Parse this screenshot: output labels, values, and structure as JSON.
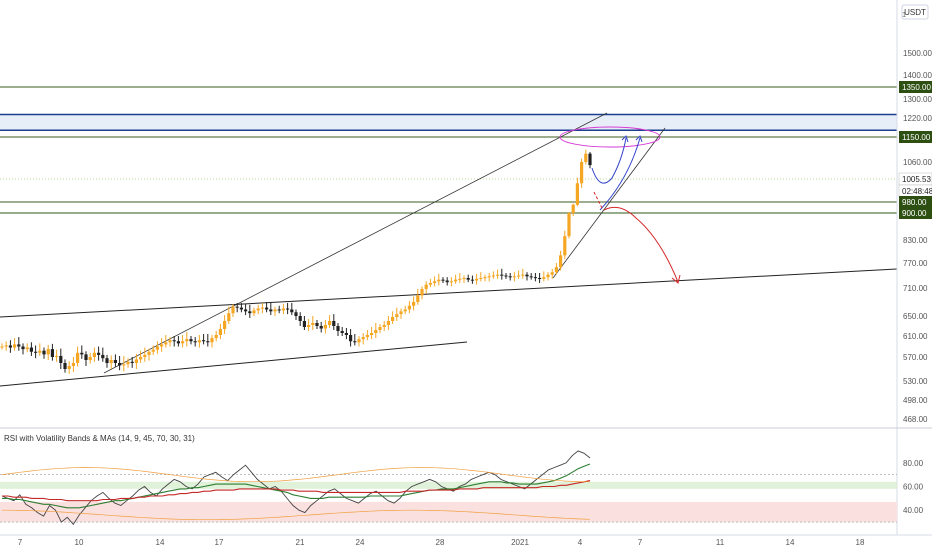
{
  "app": {
    "currency": "USDT",
    "scale_marker": "1"
  },
  "chart_data": [
    {
      "type": "candlestick",
      "title": "",
      "y_axis": {
        "ticks": [
          1500,
          1400,
          1300,
          1220,
          1060,
          830,
          770,
          710,
          650,
          610,
          570,
          530,
          498,
          468
        ],
        "tick_labels": [
          "1500.00",
          "1400.00",
          "1300.00",
          "1220.00",
          "1060.00",
          "830.00",
          "770.00",
          "710.00",
          "650.00",
          "610.00",
          "570.00",
          "530.00",
          "498.00",
          "468.00"
        ]
      },
      "x_axis": {
        "tick_labels": [
          "7",
          "10",
          "14",
          "17",
          "21",
          "24",
          "28",
          "2021",
          "4",
          "7",
          "11",
          "14",
          "18"
        ]
      },
      "price_badges": [
        {
          "label": "1350.00",
          "value": 1350,
          "style": "green"
        },
        {
          "label": "1150.00",
          "value": 1150,
          "style": "green"
        },
        {
          "label": "1005.53",
          "value": 1005.53,
          "style": "light"
        },
        {
          "label": "02:48:48",
          "value": 990,
          "style": "light"
        },
        {
          "label": "980.00",
          "value": 980,
          "style": "green"
        },
        {
          "label": "900.00",
          "value": 900,
          "style": "green"
        }
      ],
      "horizontal_levels": [
        {
          "value": 1350,
          "color": "#3a5c1c"
        },
        {
          "value": 1150,
          "color": "#3a5c1c"
        },
        {
          "value": 980,
          "color": "#3a5c1c"
        },
        {
          "value": 900,
          "color": "#2f5a17"
        },
        {
          "value": 1005.53,
          "color": "#b9dba0",
          "style": "dotted"
        }
      ],
      "zone": {
        "from": 1175,
        "to": 1235,
        "fill": "#e8eef8",
        "border": "#1a3f8f"
      },
      "candles_close": [
        590,
        592,
        588,
        594,
        590,
        585,
        588,
        580,
        578,
        582,
        575,
        585,
        570,
        572,
        560,
        550,
        555,
        560,
        578,
        575,
        565,
        570,
        578,
        574,
        568,
        560,
        565,
        560,
        556,
        558,
        562,
        560,
        566,
        570,
        574,
        580,
        584,
        590,
        594,
        598,
        602,
        600,
        596,
        600,
        604,
        600,
        598,
        602,
        600,
        598,
        606,
        612,
        624,
        640,
        656,
        670,
        668,
        664,
        660,
        656,
        662,
        666,
        668,
        664,
        660,
        664,
        662,
        666,
        664,
        658,
        650,
        640,
        628,
        632,
        636,
        630,
        625,
        632,
        640,
        630,
        620,
        616,
        612,
        600,
        598,
        604,
        608,
        612,
        616,
        622,
        628,
        632,
        640,
        648,
        654,
        660,
        664,
        672,
        680,
        694,
        708,
        718,
        722,
        726,
        730,
        728,
        724,
        726,
        730,
        732,
        734,
        730,
        728,
        732,
        734,
        736,
        738,
        740,
        742,
        740,
        738,
        736,
        738,
        740,
        742,
        738,
        736,
        734,
        732,
        736,
        742,
        748,
        760,
        790,
        840,
        900,
        960,
        1000,
        1060,
        1090,
        1050
      ],
      "line_x_start": 0,
      "price_range": [
        468,
        1500
      ]
    },
    {
      "type": "line",
      "title": "RSI with Volatility Bands & MAs (14, 9, 45, 70, 30, 31)",
      "y_axis": {
        "ticks": [
          80,
          60,
          40
        ],
        "tick_labels": [
          "80.00",
          "60.00",
          "40.00"
        ]
      },
      "series": [
        {
          "color": "#444444",
          "values": [
            52,
            50,
            48,
            53,
            45,
            42,
            38,
            35,
            44,
            40,
            30,
            34,
            28,
            36,
            42,
            48,
            52,
            55,
            50,
            46,
            44,
            48,
            52,
            57,
            60,
            55,
            52,
            58,
            62,
            66,
            64,
            60,
            58,
            62,
            68,
            70,
            72,
            68,
            65,
            70,
            74,
            78,
            72,
            66,
            62,
            58,
            60,
            56,
            50,
            44,
            40,
            38,
            44,
            48,
            52,
            56,
            58,
            54,
            50,
            48,
            46,
            50,
            54,
            56,
            52,
            48,
            46,
            50,
            56,
            60,
            62,
            64,
            66,
            64,
            60,
            58,
            56,
            60,
            62,
            66,
            68,
            70,
            72,
            70,
            66,
            64,
            62,
            60,
            58,
            62,
            66,
            70,
            74,
            76,
            78,
            80,
            86,
            90,
            88,
            84
          ]
        },
        {
          "color": "#2e7d32",
          "values": [
            50,
            50,
            49,
            49,
            48,
            47,
            46,
            45,
            45,
            44,
            43,
            42,
            42,
            42,
            43,
            44,
            45,
            46,
            47,
            48,
            48,
            49,
            50,
            51,
            52,
            53,
            54,
            55,
            56,
            57,
            58,
            58,
            59,
            59,
            60,
            61,
            62,
            62,
            62,
            62,
            62,
            62,
            61,
            60,
            59,
            58,
            57,
            56,
            55,
            53,
            52,
            51,
            50,
            50,
            50,
            51,
            51,
            51,
            51,
            51,
            51,
            51,
            52,
            52,
            52,
            52,
            52,
            52,
            53,
            54,
            55,
            56,
            57,
            57,
            58,
            58,
            58,
            59,
            60,
            61,
            62,
            63,
            64,
            64,
            64,
            63,
            63,
            62,
            62,
            62,
            62,
            63,
            64,
            65,
            67,
            69,
            72,
            75,
            77,
            79
          ]
        },
        {
          "color": "#c62828",
          "values": [
            52,
            52,
            51,
            51,
            51,
            50,
            50,
            50,
            49,
            49,
            49,
            48,
            48,
            48,
            48,
            48,
            48,
            49,
            49,
            49,
            50,
            50,
            50,
            51,
            51,
            52,
            52,
            52,
            53,
            53,
            54,
            54,
            55,
            55,
            56,
            56,
            57,
            57,
            57,
            57,
            58,
            58,
            58,
            58,
            58,
            58,
            58,
            57,
            57,
            57,
            56,
            56,
            56,
            56,
            55,
            55,
            55,
            55,
            55,
            55,
            55,
            55,
            55,
            55,
            55,
            55,
            55,
            55,
            56,
            56,
            56,
            56,
            57,
            57,
            57,
            57,
            57,
            58,
            58,
            58,
            58,
            59,
            59,
            59,
            59,
            59,
            59,
            59,
            59,
            59,
            59,
            60,
            60,
            60,
            61,
            61,
            62,
            63,
            64,
            65
          ]
        }
      ],
      "bands": {
        "upper": 70,
        "middle": 60,
        "lower": 30
      }
    }
  ]
}
